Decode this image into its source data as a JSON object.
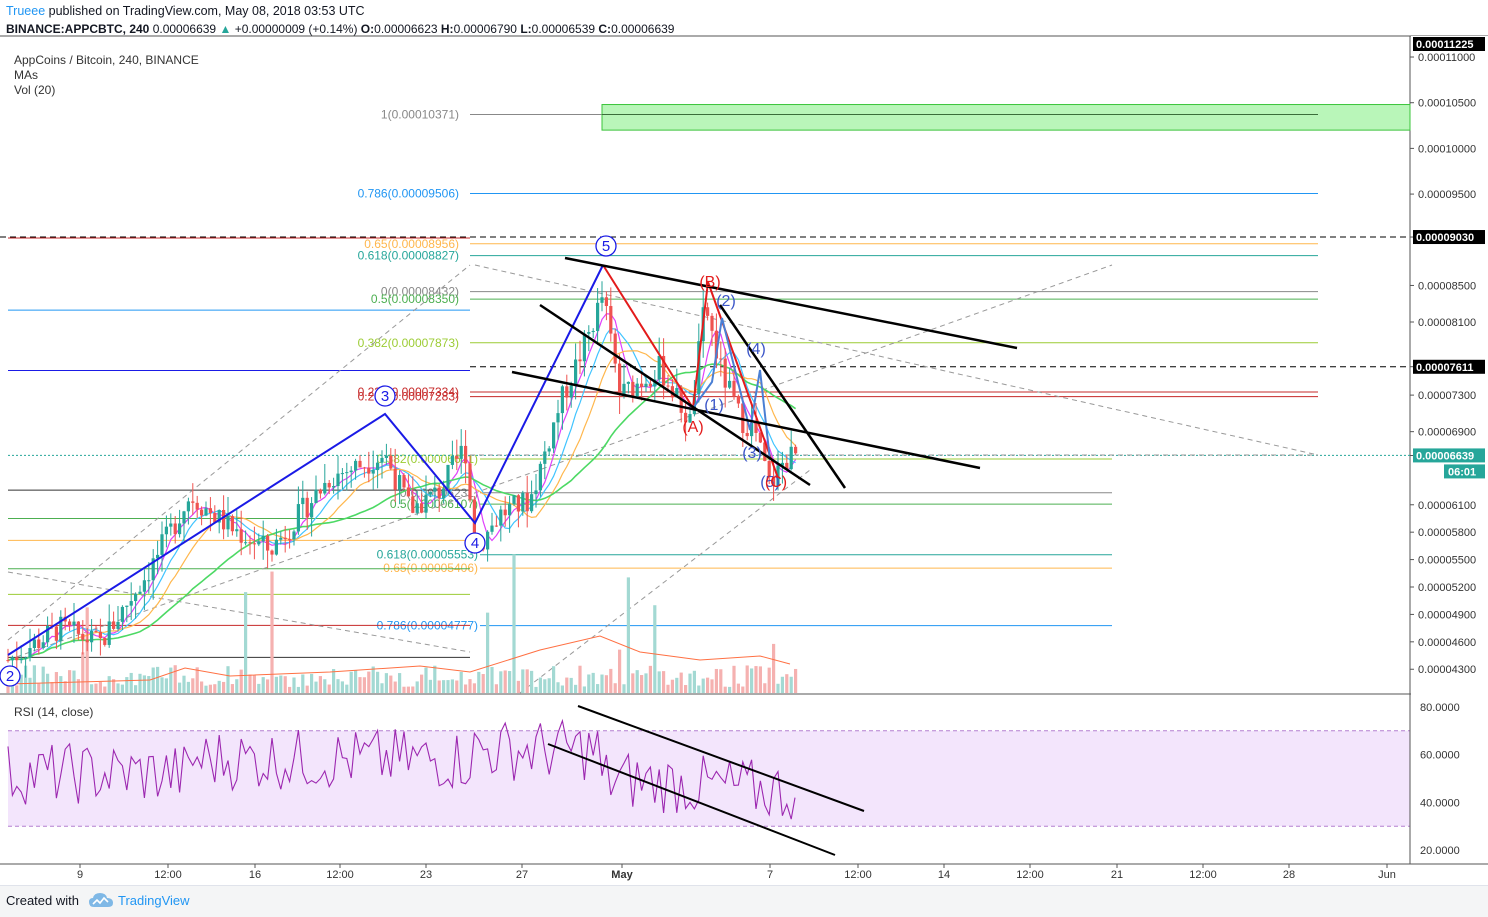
{
  "header": {
    "user": "Trueee",
    "published": "published on TradingView.com, May 08, 2018 03:53 UTC",
    "symbol_line": "BINANCE:APPCBTC, 240",
    "last_price": "0.00006639",
    "change": "+0.00000009 (+0.14%)",
    "o_label": "O:",
    "o_value": "0.00006623",
    "h_label": "H:",
    "h_value": "0.00006790",
    "l_label": "L:",
    "l_value": "0.00006539",
    "c_label": "C:",
    "c_value": "0.00006639"
  },
  "legend": {
    "title": "AppCoins / Bitcoin, 240, BINANCE",
    "mas": "MAs",
    "vol": "Vol (20)",
    "rsi": "RSI (14, close)"
  },
  "footer": {
    "created": "Created with",
    "brand": "TradingView"
  },
  "colors": {
    "up": "#26a69a",
    "down": "#ef5350",
    "blue_wave": "#1a1ae6",
    "red_wave": "#e31b1b",
    "fib_green": "#4caf50",
    "fib_blue": "#2196f3",
    "fib_olive": "#9ccc34",
    "fib_red": "#c62828",
    "rsi_line": "#9c27b0",
    "rsi_band": "#f3e5fc"
  },
  "chart_data": {
    "type": "candlestick",
    "price_axis": {
      "ticks": [
        "0.00011000",
        "0.00010500",
        "0.00010000",
        "0.00009500",
        "0.00009030",
        "0.00008500",
        "0.00008100",
        "0.00007611",
        "0.00007300",
        "0.00006900",
        "0.00006639",
        "0.00006100",
        "0.00005800",
        "0.00005500",
        "0.00005200",
        "0.00004900",
        "0.00004600",
        "0.00004300"
      ],
      "highlighted": [
        {
          "label": "0.00011225",
          "style": "black"
        },
        {
          "label": "0.00009030",
          "style": "black"
        },
        {
          "label": "0.00007611",
          "style": "black"
        },
        {
          "label": "0.00006639",
          "style": "teal"
        },
        {
          "label": "06:01",
          "style": "teal"
        }
      ]
    },
    "time_axis": [
      "9",
      "12:00",
      "16",
      "12:00",
      "23",
      "27",
      "May",
      "7",
      "12:00",
      "14",
      "12:00",
      "21",
      "12:00",
      "28",
      "Jun"
    ],
    "fib_right": [
      {
        "label": "1(0.00010371)",
        "value": 0.00010371
      },
      {
        "label": "0.786(0.00009506)",
        "value": 9.506e-05
      },
      {
        "label": "0.65(0.00008956)",
        "value": 8.956e-05
      },
      {
        "label": "0.618(0.00008827)",
        "value": 8.827e-05
      },
      {
        "label": "0(0.00008432)",
        "value": 8.432e-05
      },
      {
        "label": "0.5(0.00008350)",
        "value": 8.35e-05
      },
      {
        "label": "0.382(0.00007873)",
        "value": 7.873e-05
      },
      {
        "label": "0.236(0.00007334)",
        "value": 7.334e-05
      },
      {
        "label": "0.236(0.00007283)",
        "value": 7.283e-05
      }
    ],
    "fib_left": [
      {
        "label": "0.382(0.00006601)",
        "value": 6.601e-05
      },
      {
        "label": "0(0.00006231)",
        "value": 6.231e-05
      },
      {
        "label": "0.5(0.00006107)",
        "value": 6.107e-05
      },
      {
        "label": "0.618(0.00005553)",
        "value": 5.553e-05
      },
      {
        "label": "0.65(0.00005406)",
        "value": 5.406e-05
      },
      {
        "label": "0.786(0.00004777)",
        "value": 4.777e-05
      }
    ],
    "wave_labels_blue": [
      "2",
      "3",
      "4",
      "5"
    ],
    "wave_labels_sub": [
      "(1)",
      "(2)",
      "(3)",
      "(4)",
      "(5)"
    ],
    "wave_labels_abc": [
      "(A)",
      "(B)",
      "(C)"
    ],
    "rsi": {
      "ticks": [
        "80.0000",
        "60.0000",
        "40.0000",
        "20.0000"
      ],
      "band": [
        30,
        70
      ],
      "last": 42
    },
    "ylim": [
      4.04e-05,
      0.0001123
    ]
  }
}
